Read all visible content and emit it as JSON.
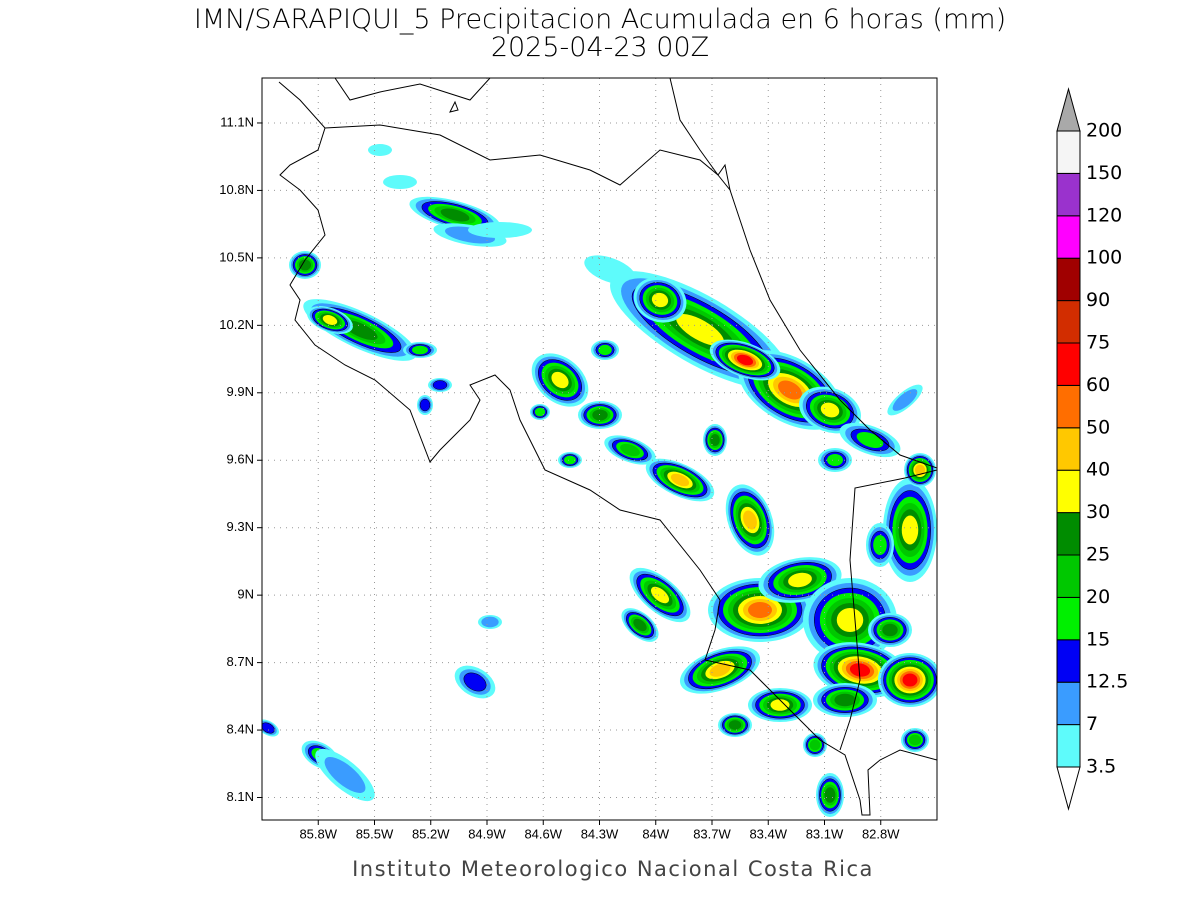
{
  "map": {
    "title": "IMN/SARAPIQUI_5 Precipitacion Acumulada en 6 horas (mm)",
    "subtitle": "2025-04-23 00Z",
    "footer": "Instituto Meteorologico Nacional Costa Rica",
    "xlim": [
      -86.1,
      -82.5
    ],
    "ylim": [
      8.0,
      11.3
    ],
    "xticks": [
      {
        "value": -85.8,
        "label": "85.8W"
      },
      {
        "value": -85.5,
        "label": "85.5W"
      },
      {
        "value": -85.2,
        "label": "85.2W"
      },
      {
        "value": -84.9,
        "label": "84.9W"
      },
      {
        "value": -84.6,
        "label": "84.6W"
      },
      {
        "value": -84.3,
        "label": "84.3W"
      },
      {
        "value": -84.0,
        "label": "84W"
      },
      {
        "value": -83.7,
        "label": "83.7W"
      },
      {
        "value": -83.4,
        "label": "83.4W"
      },
      {
        "value": -83.1,
        "label": "83.1W"
      },
      {
        "value": -82.8,
        "label": "82.8W"
      }
    ],
    "yticks": [
      {
        "value": 8.1,
        "label": "8.1N"
      },
      {
        "value": 8.4,
        "label": "8.4N"
      },
      {
        "value": 8.7,
        "label": "8.7N"
      },
      {
        "value": 9.0,
        "label": "9N"
      },
      {
        "value": 9.3,
        "label": "9.3N"
      },
      {
        "value": 9.6,
        "label": "9.6N"
      },
      {
        "value": 9.9,
        "label": "9.9N"
      },
      {
        "value": 10.2,
        "label": "10.2N"
      },
      {
        "value": 10.5,
        "label": "10.5N"
      },
      {
        "value": 10.8,
        "label": "10.8N"
      },
      {
        "value": 11.1,
        "label": "11.1N"
      }
    ],
    "grid": true,
    "colorbar": {
      "levels": [
        3.5,
        7,
        12.5,
        15,
        20,
        25,
        30,
        40,
        50,
        60,
        75,
        90,
        100,
        120,
        150,
        200
      ],
      "colors": [
        "#5efbfb",
        "#3a9cff",
        "#0000f5",
        "#00f000",
        "#00c800",
        "#008c00",
        "#ffff00",
        "#ffc800",
        "#ff6e00",
        "#ff0000",
        "#d22d00",
        "#a00000",
        "#ff00ff",
        "#9a32cd",
        "#f5f5f5"
      ],
      "under_color": "#ffffff",
      "over_color": "#a9a9a9"
    }
  }
}
